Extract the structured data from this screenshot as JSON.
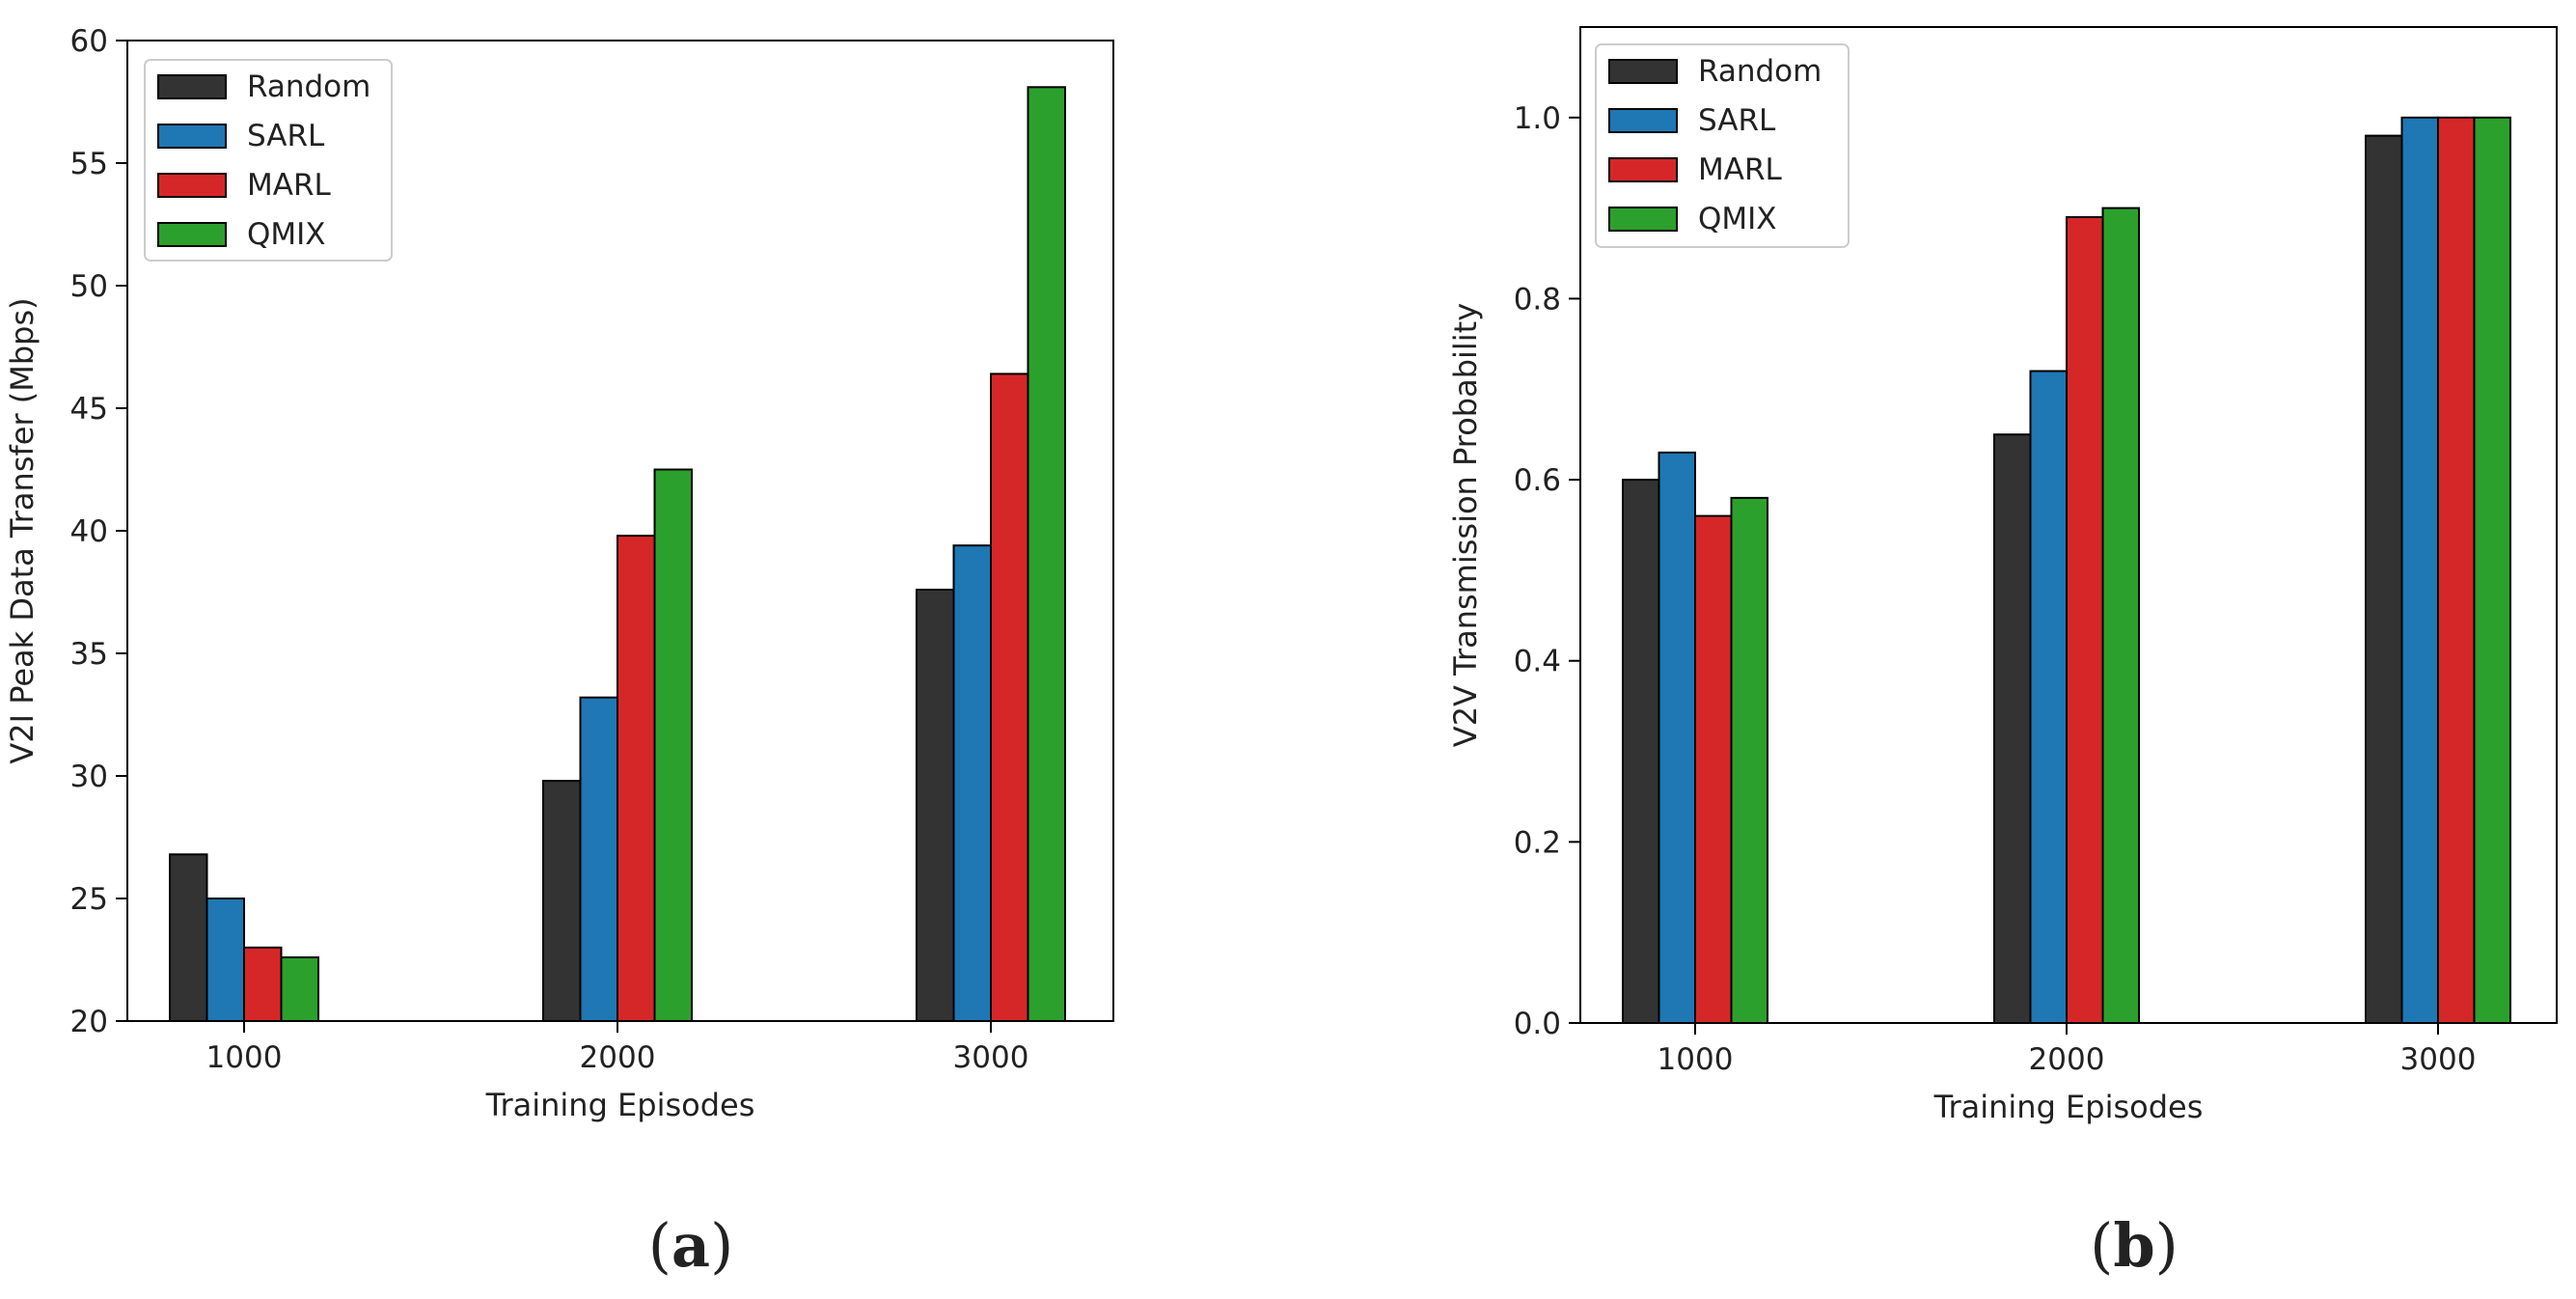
{
  "chart_data": [
    {
      "type": "bar",
      "panel_label": "a",
      "categories": [
        "1000",
        "2000",
        "3000"
      ],
      "series": [
        {
          "name": "Random",
          "color": "#333333",
          "values": [
            26.8,
            29.8,
            37.6
          ]
        },
        {
          "name": "SARL",
          "color": "#1f77b4",
          "values": [
            25.0,
            33.2,
            39.4
          ]
        },
        {
          "name": "MARL",
          "color": "#d62728",
          "values": [
            23.0,
            39.8,
            46.4
          ]
        },
        {
          "name": "QMIX",
          "color": "#2ca02c",
          "values": [
            22.6,
            42.5,
            58.1
          ]
        }
      ],
      "xlabel": "Training Episodes",
      "ylabel": "V2I Peak Data Transfer (Mbps)",
      "ylim": [
        20,
        60
      ],
      "yticks": [
        20,
        25,
        30,
        35,
        40,
        45,
        50,
        55,
        60
      ],
      "ytick_labels": [
        "20",
        "25",
        "30",
        "35",
        "40",
        "45",
        "50",
        "55",
        "60"
      ],
      "legend_position": "top-left",
      "grid": false
    },
    {
      "type": "bar",
      "panel_label": "b",
      "categories": [
        "1000",
        "2000",
        "3000"
      ],
      "series": [
        {
          "name": "Random",
          "color": "#333333",
          "values": [
            0.6,
            0.65,
            0.98
          ]
        },
        {
          "name": "SARL",
          "color": "#1f77b4",
          "values": [
            0.63,
            0.72,
            1.0
          ]
        },
        {
          "name": "MARL",
          "color": "#d62728",
          "values": [
            0.56,
            0.89,
            1.0
          ]
        },
        {
          "name": "QMIX",
          "color": "#2ca02c",
          "values": [
            0.58,
            0.9,
            1.0
          ]
        }
      ],
      "xlabel": "Training Episodes",
      "ylabel": "V2V Transmission Probability",
      "ylim": [
        0,
        1.1
      ],
      "yticks": [
        0,
        0.2,
        0.4,
        0.6,
        0.8,
        1.0
      ],
      "ytick_labels": [
        "0.0",
        "0.2",
        "0.4",
        "0.6",
        "0.8",
        "1.0"
      ],
      "legend_position": "top-left",
      "grid": false
    }
  ]
}
